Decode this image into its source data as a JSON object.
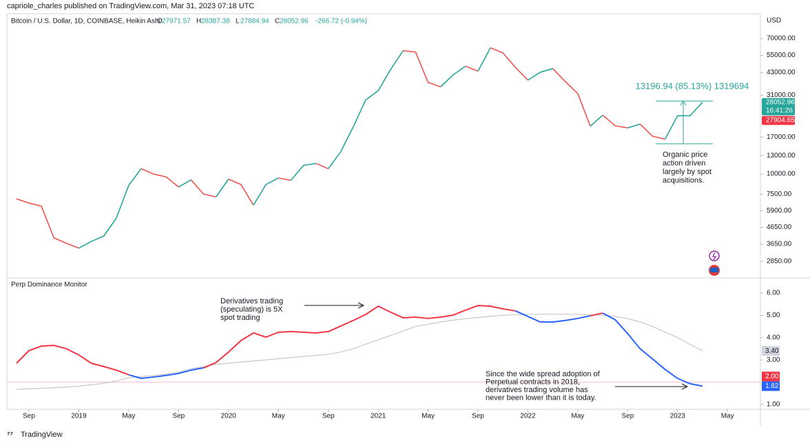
{
  "header": {
    "publisher": "capriole_charles published on TradingView.com, Mar 31, 2023 07:18 UTC",
    "footer_logo": "TradingView"
  },
  "chart_data": [
    {
      "type": "line",
      "title": "Bitcoin / U.S. Dollar, 1D, COINBASE, Heikin Ashi",
      "ohlc": [
        {
          "key": "O",
          "value": 27971.57
        },
        {
          "key": "H",
          "value": 28387.38
        },
        {
          "key": "L",
          "value": 27884.94
        },
        {
          "key": "C",
          "value": 28052.96
        }
      ],
      "change": "-266.72 (-0.94%)",
      "y_axis_label": "USD",
      "categories": [
        null,
        "Sep",
        null,
        null,
        null,
        "2019",
        null,
        null,
        null,
        "May",
        null,
        null,
        null,
        "Sep",
        null,
        null,
        null,
        "2020",
        null,
        null,
        null,
        "May",
        null,
        null,
        null,
        "Sep",
        null,
        null,
        null,
        "2021",
        null,
        null,
        null,
        "May",
        null,
        null,
        null,
        "Sep",
        null,
        null,
        null,
        "2022",
        null,
        null,
        null,
        "May",
        null,
        null,
        null,
        "Sep",
        null,
        null,
        null,
        "2023",
        null,
        null,
        null,
        "May"
      ],
      "values": [
        7000,
        6600,
        6300,
        4000,
        3700,
        3450,
        3800,
        4100,
        5300,
        8500,
        10800,
        10000,
        9600,
        8300,
        9200,
        7500,
        7200,
        9300,
        8600,
        6400,
        8600,
        9450,
        9140,
        11300,
        11650,
        10800,
        13800,
        19700,
        29000,
        33100,
        45000,
        58800,
        57700,
        37300,
        35000,
        41500,
        47100,
        43800,
        61300,
        57000,
        46300,
        38500,
        43200,
        45500,
        37700,
        31800,
        19900,
        23300,
        20000,
        19400,
        20500,
        17200,
        16500,
        23100,
        23100,
        28052.96,
        null,
        null
      ],
      "color": "#26a69a",
      "down_color": "#ef5350",
      "log_scale": true,
      "ylim": [
        2340,
        100000
      ],
      "yticks": [
        {
          "value": 70000,
          "label": "70000.00"
        },
        {
          "value": 55000,
          "label": "55000.00"
        },
        {
          "value": 43000,
          "label": "43000.00"
        },
        {
          "value": 31000,
          "label": "31000.00"
        },
        {
          "value": 17000,
          "label": "17000.00"
        },
        {
          "value": 13000,
          "label": "13000.00"
        },
        {
          "value": 10000,
          "label": "10000.00"
        },
        {
          "value": 7500,
          "label": "7500.00"
        },
        {
          "value": 5900,
          "label": "5900.00"
        },
        {
          "value": 4650,
          "label": "4650.00"
        },
        {
          "value": 3650,
          "label": "3650.00"
        },
        {
          "value": 2850,
          "label": "2850.00"
        }
      ],
      "countdown": "16:41:26",
      "marker": {
        "value": 27904.65,
        "color": "#f23645"
      },
      "annotations": [
        "13196.94 (85.13%) 1319694",
        [
          "Organic price",
          "action driven",
          "largely by spot",
          "acquisitions."
        ]
      ]
    },
    {
      "type": "line",
      "title": "Perp Dominance Monitor",
      "series": [
        {
          "values": [
            2.85,
            3.41,
            3.62,
            3.65,
            3.5,
            3.22,
            2.85,
            2.7,
            2.54,
            2.33,
            2.17,
            2.23,
            2.3,
            2.39,
            2.54,
            2.64,
            2.88,
            3.35,
            3.87,
            4.21,
            4.02,
            4.24,
            4.27,
            4.24,
            4.21,
            4.27,
            4.52,
            4.77,
            5.04,
            5.41,
            5.14,
            4.89,
            4.92,
            4.86,
            4.92,
            5.01,
            5.23,
            5.44,
            5.41,
            5.29,
            5.2,
            4.95,
            4.7,
            4.7,
            4.77,
            4.86,
            4.98,
            5.1,
            4.8,
            4.18,
            3.5,
            3.04,
            2.57,
            2.17,
            1.93,
            1.82,
            null,
            null
          ],
          "color": "#f23645",
          "below_color": "#2962ff",
          "last_label": "1.82"
        },
        {
          "values": [
            1.68,
            1.7,
            1.72,
            1.75,
            1.78,
            1.82,
            1.88,
            1.95,
            2.05,
            2.2,
            2.25,
            2.3,
            2.36,
            2.45,
            2.6,
            2.7,
            2.8,
            2.85,
            2.9,
            2.95,
            3.0,
            3.05,
            3.1,
            3.15,
            3.2,
            3.25,
            3.35,
            3.5,
            3.7,
            3.9,
            4.1,
            4.3,
            4.5,
            4.6,
            4.7,
            4.78,
            4.85,
            4.9,
            4.95,
            5.0,
            5.03,
            5.05,
            5.05,
            5.05,
            5.05,
            5.05,
            5.03,
            5.0,
            4.95,
            4.85,
            4.7,
            4.5,
            4.25,
            4.0,
            3.7,
            3.4,
            null,
            null
          ],
          "color": "#c8c8c8",
          "last_label": "3.40"
        }
      ],
      "ylim": [
        0.78,
        6.65
      ],
      "yticks": [
        {
          "value": 6,
          "label": "6.00"
        },
        {
          "value": 5,
          "label": "5.00"
        },
        {
          "value": 4,
          "label": "4.00"
        },
        {
          "value": 3,
          "label": "3.00"
        },
        {
          "value": 1,
          "label": "1.00"
        }
      ],
      "level": {
        "value": 2,
        "label": "2.00",
        "color": "#f23645"
      },
      "annotations": [
        [
          "Derivatives trading",
          "(speculating) is 5X",
          "spot trading"
        ],
        [
          "Since the wide spread adoption of",
          "Perpetual contracts in 2018,",
          "derivatives trading volume has",
          "never been lower than it is today."
        ]
      ]
    }
  ]
}
